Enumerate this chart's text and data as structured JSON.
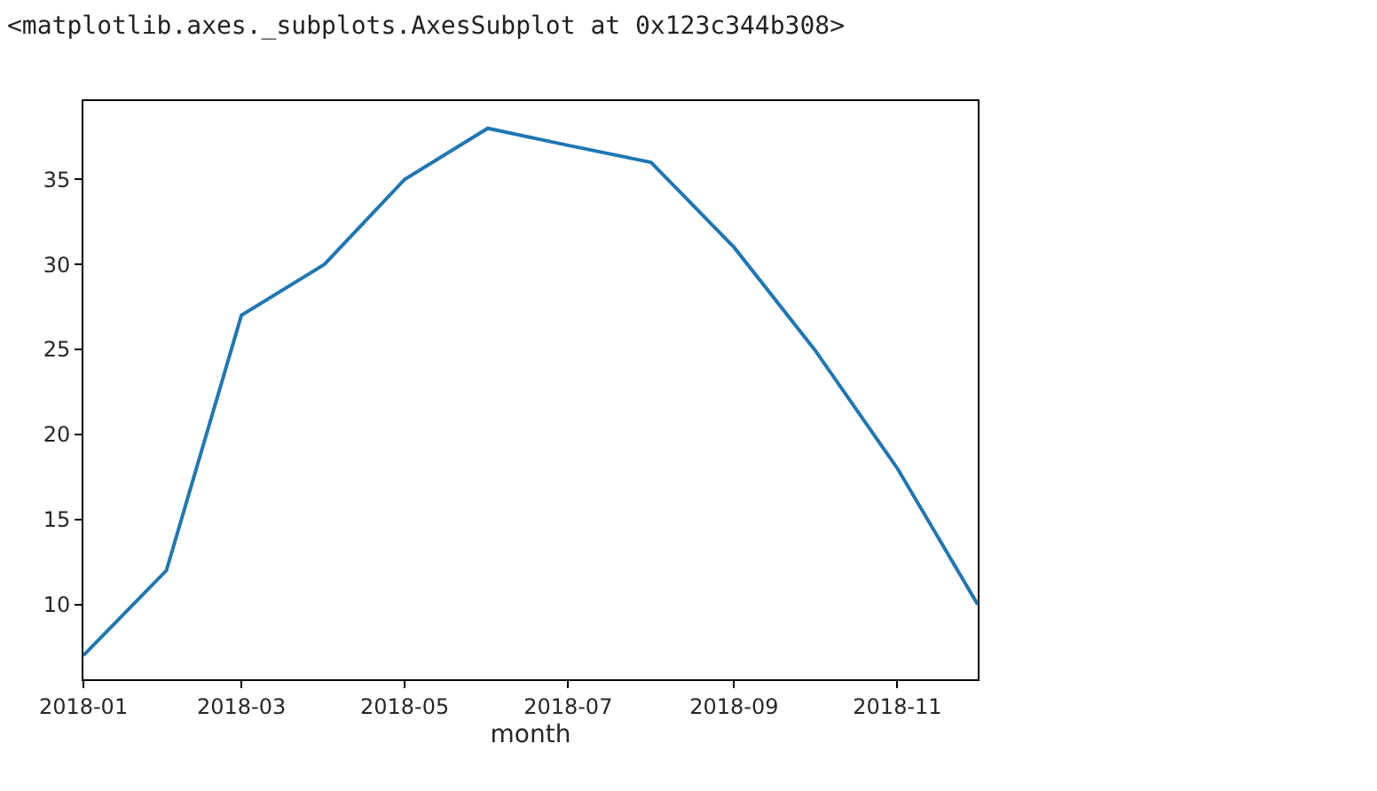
{
  "chart_data": {
    "type": "line",
    "annotations": [
      "<matplotlib.axes._subplots.AxesSubplot at 0x123c344b308>"
    ],
    "xlabel": "month",
    "x": [
      "2018-01",
      "2018-02",
      "2018-03",
      "2018-04",
      "2018-05",
      "2018-06",
      "2018-07",
      "2018-08",
      "2018-09",
      "2018-10",
      "2018-11",
      "2018-12"
    ],
    "series": [
      {
        "color": "#1f77b4",
        "values": [
          7,
          12,
          27,
          30,
          35,
          38,
          37,
          36,
          31,
          25,
          18,
          10
        ]
      }
    ],
    "xlim": [
      "2018-01",
      "2018-12"
    ],
    "xticks": [
      "2018-01",
      "2018-03",
      "2018-05",
      "2018-07",
      "2018-09",
      "2018-11"
    ],
    "ylim": [
      5.6,
      39.6
    ],
    "yticks": [
      10,
      15,
      20,
      25,
      30,
      35
    ],
    "grid": false,
    "marker": "none",
    "line_style": "solid"
  }
}
